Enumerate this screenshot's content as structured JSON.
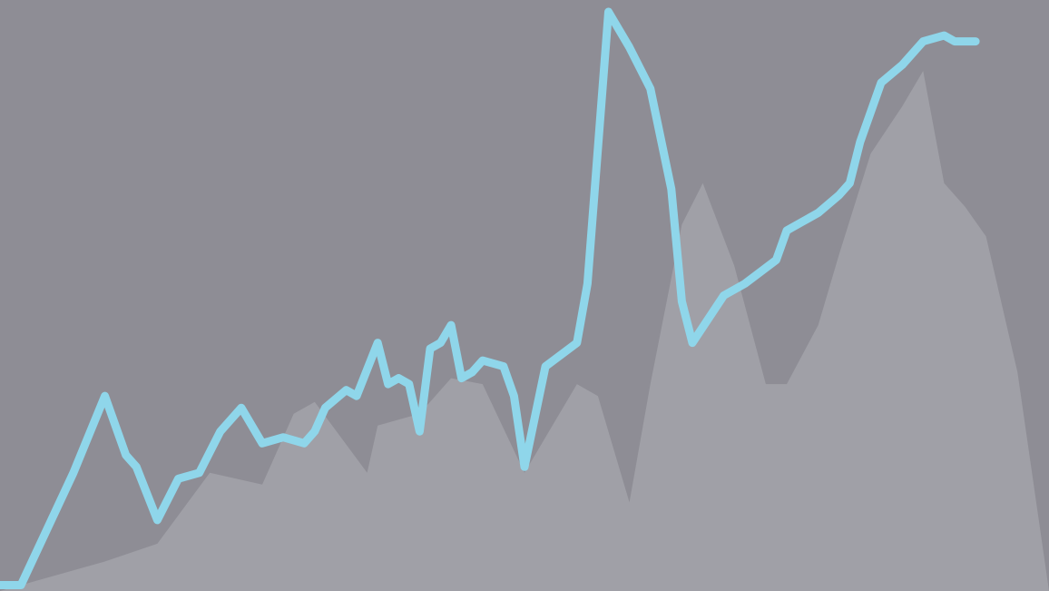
{
  "chart_data": {
    "type": "line",
    "title": "",
    "xlabel": "",
    "ylabel": "",
    "grid": false,
    "legend": "none",
    "xlim": [
      0,
      1
    ],
    "ylim": [
      0,
      1
    ],
    "series": [
      {
        "kind": "area",
        "color": "#a0a0a7",
        "x": [
          0.0,
          0.1,
          0.15,
          0.2,
          0.25,
          0.28,
          0.3,
          0.35,
          0.36,
          0.4,
          0.43,
          0.46,
          0.5,
          0.55,
          0.57,
          0.6,
          0.62,
          0.65,
          0.67,
          0.7,
          0.73,
          0.75,
          0.78,
          0.8,
          0.83,
          0.86,
          0.88,
          0.9,
          0.92,
          0.94,
          0.97,
          1.0
        ],
        "y": [
          0.0,
          0.05,
          0.08,
          0.2,
          0.18,
          0.3,
          0.32,
          0.2,
          0.28,
          0.3,
          0.36,
          0.35,
          0.2,
          0.35,
          0.33,
          0.15,
          0.35,
          0.62,
          0.69,
          0.55,
          0.35,
          0.35,
          0.45,
          0.57,
          0.74,
          0.82,
          0.88,
          0.69,
          0.65,
          0.6,
          0.37,
          0.0
        ]
      },
      {
        "kind": "line",
        "color": "#8fd6ea",
        "x": [
          0.0,
          0.02,
          0.07,
          0.1,
          0.12,
          0.13,
          0.15,
          0.17,
          0.19,
          0.21,
          0.23,
          0.25,
          0.27,
          0.29,
          0.3,
          0.31,
          0.33,
          0.34,
          0.36,
          0.37,
          0.38,
          0.39,
          0.4,
          0.41,
          0.42,
          0.43,
          0.44,
          0.45,
          0.46,
          0.48,
          0.49,
          0.5,
          0.52,
          0.55,
          0.56,
          0.58,
          0.6,
          0.62,
          0.64,
          0.65,
          0.66,
          0.69,
          0.71,
          0.74,
          0.75,
          0.78,
          0.8,
          0.81,
          0.82,
          0.84,
          0.86,
          0.88,
          0.9,
          0.91,
          0.93
        ],
        "y": [
          0.01,
          0.01,
          0.2,
          0.33,
          0.23,
          0.21,
          0.12,
          0.19,
          0.2,
          0.27,
          0.31,
          0.25,
          0.26,
          0.25,
          0.27,
          0.31,
          0.34,
          0.33,
          0.42,
          0.35,
          0.36,
          0.35,
          0.27,
          0.41,
          0.42,
          0.45,
          0.36,
          0.37,
          0.39,
          0.38,
          0.33,
          0.21,
          0.38,
          0.42,
          0.52,
          0.98,
          0.92,
          0.85,
          0.68,
          0.49,
          0.42,
          0.5,
          0.52,
          0.56,
          0.61,
          0.64,
          0.67,
          0.69,
          0.76,
          0.86,
          0.89,
          0.93,
          0.94,
          0.93,
          0.93
        ]
      }
    ]
  }
}
